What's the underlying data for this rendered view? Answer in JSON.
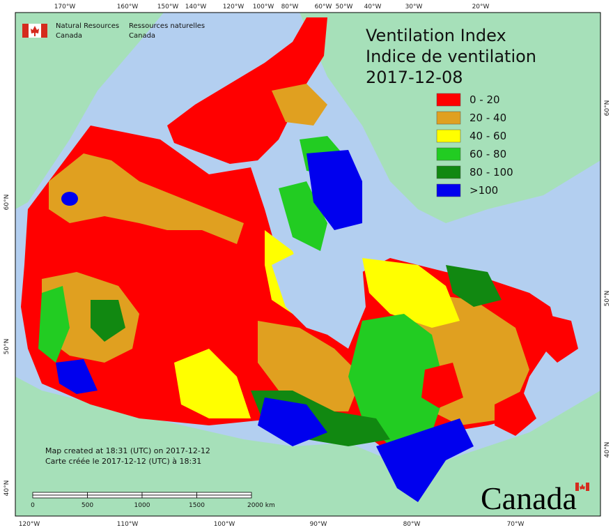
{
  "header": {
    "org_en": [
      "Natural Resources",
      "Canada"
    ],
    "org_fr": [
      "Ressources naturelles",
      "Canada"
    ]
  },
  "title": [
    "Ventilation Index",
    "Indice de ventilation",
    "2017-12-08"
  ],
  "legend": [
    {
      "label": "0 - 20",
      "color": "#ff0000"
    },
    {
      "label": "20 - 40",
      "color": "#e0a020"
    },
    {
      "label": "40 - 60",
      "color": "#ffff00"
    },
    {
      "label": "60 - 80",
      "color": "#22cc22"
    },
    {
      "label": "80 - 100",
      "color": "#118811"
    },
    {
      "label": ">100",
      "color": "#0000ee"
    }
  ],
  "top_longitudes": [
    "170°W",
    "160°W",
    "150°W",
    "140°W",
    "120°W",
    "100°W",
    "80°W",
    "60°W",
    "50°W",
    "40°W",
    "30°W",
    "20°W"
  ],
  "bottom_longitudes": [
    "120°W",
    "110°W",
    "100°W",
    "90°W",
    "80°W",
    "70°W"
  ],
  "left_latitudes": [
    "60°N",
    "50°N",
    "40°N"
  ],
  "right_latitudes": [
    "60°N",
    "50°N",
    "40°N"
  ],
  "footer": [
    "Map created at 18:31 (UTC) on 2017-12-12",
    "Carte créée le 2017-12-12 (UTC) à 18:31"
  ],
  "scale_labels": [
    "0",
    "500",
    "1000",
    "1500",
    "2000 km"
  ],
  "wordmark": "Canada"
}
